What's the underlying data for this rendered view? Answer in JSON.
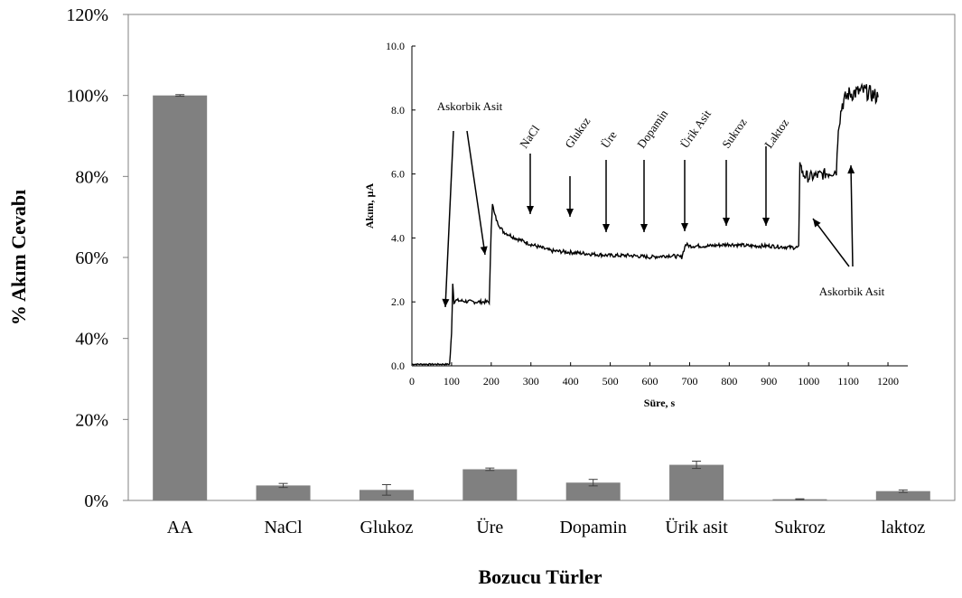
{
  "colors": {
    "bar": "#808080",
    "axis": "#808080",
    "line": "#000000",
    "background": "#ffffff"
  },
  "chart_data": [
    {
      "type": "bar",
      "categories": [
        "AA",
        "NaCl",
        "Glukoz",
        "Üre",
        "Dopamin",
        "Ürik asit",
        "Sukroz",
        "laktoz"
      ],
      "values": [
        100,
        3.7,
        2.6,
        7.7,
        4.4,
        8.8,
        0.3,
        2.3
      ],
      "errors": [
        0.2,
        0.5,
        1.3,
        0.3,
        0.8,
        0.9,
        0.1,
        0.3
      ],
      "xlabel": "Bozucu Türler",
      "ylabel": "% Akım Cevabı",
      "ylim": [
        0,
        120
      ],
      "yticks": [
        "0%",
        "20%",
        "40%",
        "60%",
        "80%",
        "100%",
        "120%"
      ],
      "grid": false,
      "legend": "none"
    },
    {
      "type": "line",
      "xlabel": "Süre, s",
      "ylabel": "Akım, µA",
      "xlim": [
        0,
        1250
      ],
      "ylim": [
        0,
        10
      ],
      "xticks": [
        "0",
        "100",
        "200",
        "300",
        "400",
        "500",
        "600",
        "700",
        "800",
        "900",
        "1000",
        "1100",
        "1200"
      ],
      "yticks": [
        "0.0",
        "2.0",
        "4.0",
        "6.0",
        "8.0",
        "10.0"
      ],
      "series": [
        {
          "x": [
            0,
            95,
            100,
            103,
            106,
            110,
            150,
            195,
            200,
            203,
            207,
            215,
            230,
            260,
            300,
            350,
            400,
            450,
            500,
            550,
            600,
            650,
            680,
            690,
            700,
            750,
            800,
            850,
            900,
            960,
            975,
            978,
            985,
            1000,
            1040,
            1070,
            1075,
            1085,
            1100,
            1140,
            1175
          ],
          "y": [
            0.05,
            0.05,
            1.0,
            2.6,
            2.0,
            2.05,
            2.0,
            2.0,
            4.3,
            5.1,
            4.8,
            4.5,
            4.2,
            4.0,
            3.8,
            3.6,
            3.55,
            3.5,
            3.45,
            3.45,
            3.4,
            3.45,
            3.4,
            3.8,
            3.75,
            3.75,
            3.8,
            3.75,
            3.75,
            3.7,
            3.7,
            6.4,
            6.0,
            5.9,
            6.0,
            6.1,
            7.5,
            8.2,
            8.5,
            8.6,
            8.4
          ]
        }
      ],
      "annotations": [
        {
          "text": "Askorbik Asit",
          "x": 200,
          "y": 7.8
        },
        {
          "text": "NaCl",
          "x": 300,
          "y": 6.5
        },
        {
          "text": "Glukoz",
          "x": 400,
          "y": 6.5
        },
        {
          "text": "Üre",
          "x": 500,
          "y": 6.5
        },
        {
          "text": "Dopamin",
          "x": 600,
          "y": 6.5
        },
        {
          "text": "Ürik Asit",
          "x": 700,
          "y": 6.5
        },
        {
          "text": "Sukroz",
          "x": 800,
          "y": 6.5
        },
        {
          "text": "Laktoz",
          "x": 900,
          "y": 6.5
        },
        {
          "text": "Askorbik Asit",
          "x": 1080,
          "y": 2.0
        }
      ]
    }
  ]
}
